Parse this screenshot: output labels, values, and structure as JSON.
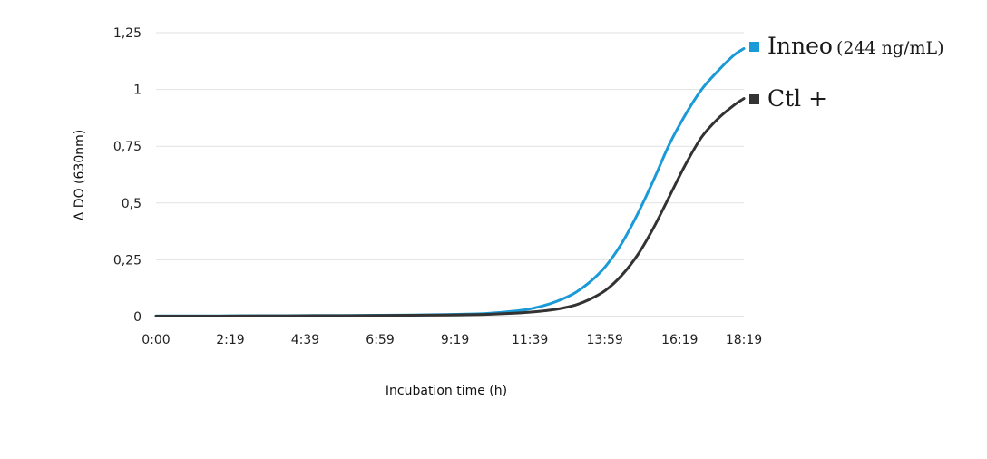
{
  "chart_data": {
    "type": "line",
    "title": "",
    "xlabel": "Incubation time (h)",
    "ylabel": "Δ DO (630nm)",
    "x_tick_labels": [
      "0:00",
      "2:19",
      "4:39",
      "6:59",
      "9:19",
      "11:39",
      "13:59",
      "16:19",
      "18:19"
    ],
    "x_tick_hours": [
      0,
      2.317,
      4.65,
      6.983,
      9.317,
      11.65,
      13.983,
      16.317,
      18.317
    ],
    "xlim_hours": [
      0,
      18.317
    ],
    "y_ticks": [
      0,
      0.25,
      0.5,
      0.75,
      1,
      1.25
    ],
    "y_tick_labels": [
      "0",
      "0,25",
      "0,5",
      "0,75",
      "1",
      "1,25"
    ],
    "ylim": [
      0,
      1.25
    ],
    "grid": true,
    "legend_position": "right",
    "x_hours": [
      0,
      1,
      2,
      3,
      4,
      5,
      6,
      7,
      8,
      9,
      10,
      10.5,
      11,
      11.5,
      12,
      12.5,
      13,
      13.5,
      14,
      14.5,
      15,
      15.5,
      16,
      16.5,
      17,
      17.5,
      18,
      18.317
    ],
    "series": [
      {
        "name": "Inneo",
        "label_suffix": "(244 ng/mL)",
        "color": "#1a9ad6",
        "values": [
          0.003,
          0.003,
          0.003,
          0.004,
          0.004,
          0.005,
          0.005,
          0.006,
          0.007,
          0.009,
          0.012,
          0.016,
          0.022,
          0.03,
          0.045,
          0.068,
          0.1,
          0.15,
          0.22,
          0.32,
          0.45,
          0.6,
          0.76,
          0.89,
          1.0,
          1.08,
          1.15,
          1.18
        ]
      },
      {
        "name": "Ctl +",
        "label_suffix": "",
        "color": "#333333",
        "values": [
          0.002,
          0.002,
          0.002,
          0.003,
          0.003,
          0.004,
          0.004,
          0.005,
          0.006,
          0.007,
          0.009,
          0.011,
          0.014,
          0.018,
          0.024,
          0.033,
          0.048,
          0.075,
          0.115,
          0.18,
          0.27,
          0.39,
          0.53,
          0.67,
          0.79,
          0.87,
          0.93,
          0.96
        ]
      }
    ]
  }
}
